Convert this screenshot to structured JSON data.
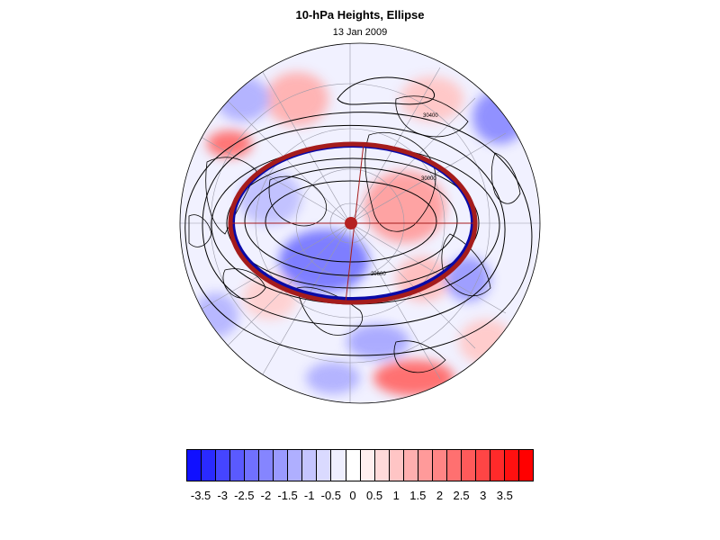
{
  "title": "10-hPa Heights, Ellipse",
  "subtitle": "13 Jan 2009",
  "map": {
    "projection": "north polar stereographic",
    "field": "10-hPa geopotential height anomaly (shaded)",
    "contours": "10-hPa geopotential height (black lines)",
    "ellipse_colors": {
      "fitted": "#a51c1c",
      "reference": "#0a0aa8"
    },
    "pole_marker_color": "#b52020",
    "contour_labels": [
      "29600",
      "30000",
      "30400"
    ]
  },
  "colorbar": {
    "colors": [
      "#1010ff",
      "#2a2aff",
      "#4545ff",
      "#5a5aff",
      "#7070ff",
      "#8585ff",
      "#9a9aff",
      "#afafff",
      "#c5c5ff",
      "#dadaff",
      "#efefff",
      "#ffffff",
      "#ffefef",
      "#ffdada",
      "#ffc5c5",
      "#ffafaf",
      "#ff9a9a",
      "#ff8585",
      "#ff7070",
      "#ff5a5a",
      "#ff4545",
      "#ff2a2a",
      "#ff1010",
      "#ff0000"
    ],
    "labels": [
      "-3.5",
      "-3",
      "-2.5",
      "-2",
      "-1.5",
      "-1",
      "-0.5",
      "0",
      "0.5",
      "1",
      "1.5",
      "2",
      "2.5",
      "3",
      "3.5"
    ]
  }
}
